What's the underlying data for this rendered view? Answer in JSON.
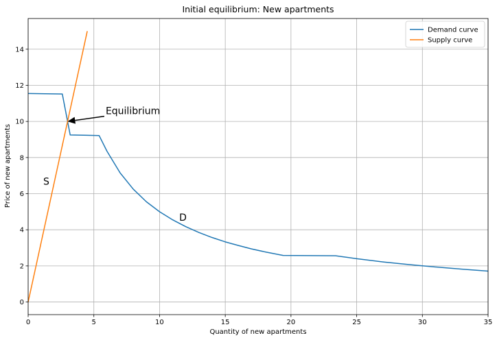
{
  "chart_data": {
    "type": "line",
    "title": "Initial equilibrium: New apartments",
    "xlabel": "Quantity of new apartments",
    "ylabel": "Price of new apartments",
    "xlim": [
      0,
      35
    ],
    "ylim": [
      -0.7,
      15.7
    ],
    "xticks": [
      0,
      5,
      10,
      15,
      20,
      25,
      30,
      35
    ],
    "yticks": [
      0,
      2,
      4,
      6,
      8,
      10,
      12,
      14
    ],
    "grid": true,
    "legend_position": "top-right",
    "series": [
      {
        "name": "Demand curve",
        "color": "#1f77b4",
        "points": [
          [
            0,
            11.55
          ],
          [
            2.6,
            11.52
          ],
          [
            3.2,
            9.25
          ],
          [
            5.4,
            9.22
          ],
          [
            6,
            8.35
          ],
          [
            7,
            7.15
          ],
          [
            8,
            6.25
          ],
          [
            9,
            5.55
          ],
          [
            10,
            5.0
          ],
          [
            11,
            4.55
          ],
          [
            12,
            4.17
          ],
          [
            13,
            3.85
          ],
          [
            14,
            3.57
          ],
          [
            15,
            3.33
          ],
          [
            16,
            3.13
          ],
          [
            17,
            2.94
          ],
          [
            18,
            2.78
          ],
          [
            19.4,
            2.58
          ],
          [
            23.4,
            2.56
          ],
          [
            25,
            2.4
          ],
          [
            27,
            2.22
          ],
          [
            29,
            2.07
          ],
          [
            31,
            1.94
          ],
          [
            33,
            1.82
          ],
          [
            35,
            1.71
          ]
        ]
      },
      {
        "name": "Supply curve",
        "color": "#ff7f0e",
        "points": [
          [
            0,
            0
          ],
          [
            4.5,
            15.0
          ]
        ]
      }
    ],
    "annotations": [
      {
        "text": "Equilibrium",
        "x": 5.9,
        "y": 10.4,
        "arrow_to": [
          3.0,
          10.0
        ]
      },
      {
        "text": "S",
        "x": 1.15,
        "y": 6.5
      },
      {
        "text": "D",
        "x": 11.5,
        "y": 4.5
      }
    ]
  }
}
